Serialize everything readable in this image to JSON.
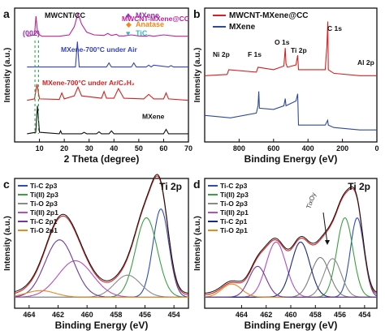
{
  "chart_data": [
    {
      "panel_label": "a",
      "type": "line",
      "xlabel": "2 Theta (degree)",
      "ylabel": "Intensity (a.u.)",
      "xlim": [
        0,
        70
      ],
      "xticks": [
        "10",
        "20",
        "30",
        "40",
        "50",
        "60",
        "70"
      ],
      "legend": {
        "placement": "top-right",
        "entries": [
          {
            "symbol": "♣",
            "label": "MXene",
            "color": "#9b30b0"
          },
          {
            "symbol": "◆",
            "label": "Anatase",
            "color": "#f08a1c"
          },
          {
            "symbol": "♥",
            "label": "TiC",
            "color": "#33b7c9"
          }
        ]
      },
      "annotations": [
        "MWCNT/CC",
        "(002)"
      ],
      "series": [
        {
          "name": "MWCNT-MXene@CC",
          "color": "#c0209a",
          "x": [
            5,
            8,
            8.6,
            9.3,
            11,
            18,
            22,
            24,
            25.5,
            27,
            29,
            32,
            36,
            37.5,
            39,
            41,
            42,
            44,
            47,
            50,
            53,
            54,
            56,
            60,
            65,
            70
          ],
          "y": [
            0.05,
            0.1,
            0.8,
            0.15,
            0.05,
            0.05,
            0.1,
            0.4,
            0.9,
            0.5,
            0.2,
            0.1,
            0.08,
            0.15,
            0.08,
            0.12,
            0.06,
            0.06,
            0.1,
            0.06,
            0.05,
            0.08,
            0.05,
            0.1,
            0.05,
            0.05
          ]
        },
        {
          "name": "MXene-700°C under Air",
          "color": "#3344bb",
          "x": [
            5,
            20,
            24.5,
            25.3,
            26,
            30,
            37,
            38,
            39,
            47,
            48,
            49,
            53,
            54,
            55,
            56,
            62,
            63,
            64,
            70
          ],
          "y": [
            0.05,
            0.05,
            0.05,
            1.0,
            0.05,
            0.05,
            0.05,
            0.2,
            0.05,
            0.05,
            0.2,
            0.05,
            0.05,
            0.12,
            0.05,
            0.12,
            0.05,
            0.1,
            0.05,
            0.05
          ]
        },
        {
          "name": "MXene-700°C under Ar/C₂H₂",
          "color": "#d42222",
          "x": [
            5,
            8,
            9,
            10,
            18,
            19,
            20,
            24,
            25.5,
            27,
            35,
            36,
            37,
            40,
            41.8,
            44,
            52,
            54,
            56,
            60,
            61,
            62,
            70
          ],
          "y": [
            0.05,
            0.1,
            0.6,
            0.1,
            0.08,
            0.3,
            0.1,
            0.2,
            0.5,
            0.2,
            0.12,
            0.35,
            0.12,
            0.12,
            0.45,
            0.12,
            0.1,
            0.25,
            0.1,
            0.1,
            0.3,
            0.1,
            0.05
          ]
        },
        {
          "name": "MXene",
          "color": "#111111",
          "x": [
            5,
            8.5,
            9.2,
            10,
            18,
            18.5,
            19,
            27,
            28,
            29,
            33,
            34,
            35,
            38,
            39,
            40,
            45,
            60,
            61,
            62,
            70
          ],
          "y": [
            0.05,
            0.1,
            1.0,
            0.1,
            0.05,
            0.15,
            0.05,
            0.05,
            0.1,
            0.05,
            0.05,
            0.12,
            0.05,
            0.05,
            0.15,
            0.05,
            0.05,
            0.05,
            0.2,
            0.05,
            0.05
          ]
        }
      ]
    },
    {
      "panel_label": "b",
      "type": "line",
      "xlabel": "Binding Energy (eV)",
      "ylabel": "Intensity (a.u.)",
      "xlim": [
        1000,
        0
      ],
      "xticks": [
        "800",
        "600",
        "400",
        "200",
        "0"
      ],
      "legend": {
        "placement": "top-left"
      },
      "annotations": [
        "Ni 2p",
        "F 1s",
        "O 1s",
        "Ti 2p",
        "C 1s",
        "Al 2p"
      ],
      "series": [
        {
          "name": "MWCNT-MXene@CC",
          "color": "#d42222",
          "x": [
            1000,
            870,
            860,
            700,
            690,
            600,
            540,
            532,
            528,
            520,
            470,
            460,
            455,
            300,
            290,
            285,
            282,
            250,
            100,
            0
          ],
          "y": [
            0.55,
            0.56,
            0.6,
            0.58,
            0.62,
            0.6,
            0.63,
            0.78,
            0.65,
            0.62,
            0.64,
            0.72,
            0.6,
            0.6,
            0.8,
            1.0,
            0.6,
            0.57,
            0.55,
            0.55
          ]
        },
        {
          "name": "MXene",
          "color": "#2f4a9a",
          "x": [
            1000,
            850,
            700,
            690,
            686,
            682,
            600,
            540,
            532,
            528,
            470,
            460,
            455,
            300,
            286,
            282,
            250,
            100,
            0
          ],
          "y": [
            0.22,
            0.2,
            0.24,
            0.3,
            0.42,
            0.28,
            0.27,
            0.3,
            0.36,
            0.3,
            0.34,
            0.4,
            0.14,
            0.14,
            0.18,
            0.14,
            0.12,
            0.1,
            0.1
          ]
        }
      ]
    },
    {
      "panel_label": "c",
      "type": "line",
      "title": "Ti 2p",
      "xlabel": "Binding Energy (eV)",
      "ylabel": "Intensity (a.u.)",
      "xlim": [
        465,
        453
      ],
      "xticks": [
        "464",
        "462",
        "460",
        "458",
        "456",
        "454"
      ],
      "legend": {
        "placement": "top-left"
      },
      "peaks": [
        {
          "name": "Ti-C 2p3",
          "color": "#2f4fb0",
          "center": 454.9,
          "height": 0.8,
          "width": 0.55
        },
        {
          "name": "Ti(II) 2p3",
          "color": "#3aa040",
          "center": 455.9,
          "height": 0.72,
          "width": 0.75
        },
        {
          "name": "Ti-O 2p3",
          "color": "#8a8a8a",
          "center": 457.2,
          "height": 0.2,
          "width": 0.9
        },
        {
          "name": "Ti(II) 2p1",
          "color": "#b54fc0",
          "center": 460.8,
          "height": 0.33,
          "width": 1.2
        },
        {
          "name": "Ti-C 2p1",
          "color": "#6e3aa0",
          "center": 461.9,
          "height": 0.52,
          "width": 1.0
        },
        {
          "name": "Ti-O 2p1",
          "color": "#e58a1f",
          "center": 463.2,
          "height": 0.06,
          "width": 1.0
        }
      ]
    },
    {
      "panel_label": "d",
      "type": "line",
      "title": "Ti 2p",
      "xlabel": "Binding Energy (eV)",
      "ylabel": "Intensity (a.u.)",
      "xlim": [
        467,
        453
      ],
      "xticks": [
        "464",
        "462",
        "460",
        "458",
        "456",
        "454"
      ],
      "legend": {
        "placement": "top-left"
      },
      "annotations": [
        "TixOy"
      ],
      "peaks": [
        {
          "name": "Ti-C 2p3",
          "color": "#2f4fb0",
          "center": 454.6,
          "height": 0.72,
          "width": 0.55
        },
        {
          "name": "Ti(II) 2p3",
          "color": "#3aa040",
          "center": 455.6,
          "height": 0.72,
          "width": 0.65
        },
        {
          "name": "Ti-O 2p3",
          "color": "#8a8a8a",
          "center": 456.6,
          "height": 0.35,
          "width": 0.7
        },
        {
          "name": "TixOy",
          "color": "#7a7a7a",
          "center": 457.6,
          "height": 0.36,
          "width": 0.75
        },
        {
          "name": "Ti(II) 2p1",
          "color": "#b54fc0",
          "center": 461.2,
          "height": 0.5,
          "width": 0.8
        },
        {
          "name": "Ti-C 2p1",
          "color": "#1a2a80",
          "center": 459.2,
          "height": 0.5,
          "width": 0.75
        },
        {
          "name": "Ti-O 2p1",
          "color": "#e58a1f",
          "center": 464.8,
          "height": 0.12,
          "width": 0.8
        },
        {
          "name": "",
          "color": "#6e3aa0",
          "center": 462.7,
          "height": 0.28,
          "width": 0.7
        }
      ]
    }
  ],
  "colors": {
    "envelope": "#d42222",
    "axis": "#111111"
  }
}
